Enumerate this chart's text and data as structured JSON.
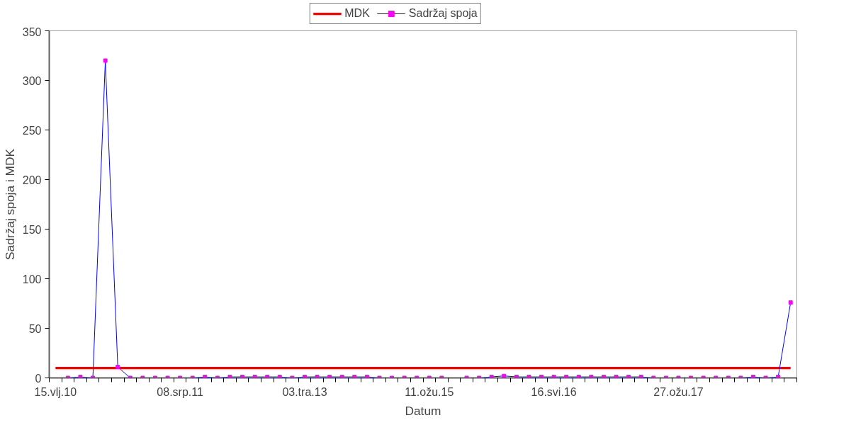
{
  "chart_data": {
    "type": "line",
    "xlabel": "Datum",
    "ylabel": "Sadržaj spoja i MDK",
    "categories": [
      "15.vlj.10",
      null,
      null,
      null,
      null,
      null,
      null,
      null,
      null,
      null,
      "08.srp.11",
      null,
      null,
      null,
      null,
      null,
      null,
      null,
      null,
      null,
      "03.tra.13",
      null,
      null,
      null,
      null,
      null,
      null,
      null,
      null,
      null,
      "11.ožu.15",
      null,
      null,
      null,
      null,
      null,
      null,
      null,
      null,
      null,
      "16.svi.16",
      null,
      null,
      null,
      null,
      null,
      null,
      null,
      null,
      null,
      "27.ožu.17",
      null,
      null,
      null,
      null,
      null,
      null,
      null,
      null,
      null
    ],
    "series": [
      {
        "name": "MDK",
        "color": "#ff0000",
        "marker": "none",
        "values": [
          10,
          10,
          10,
          10,
          10,
          10,
          10,
          10,
          10,
          10,
          10,
          10,
          10,
          10,
          10,
          10,
          10,
          10,
          10,
          10,
          10,
          10,
          10,
          10,
          10,
          10,
          10,
          10,
          10,
          10,
          10,
          10,
          10,
          10,
          10,
          10,
          10,
          10,
          10,
          10,
          10,
          10,
          10,
          10,
          10,
          10,
          10,
          10,
          10,
          10,
          10,
          10,
          10,
          10,
          10,
          10,
          10,
          10,
          10,
          10
        ]
      },
      {
        "name": "Sadržaj spoja",
        "color": "#0000ff",
        "marker": "square",
        "colors": [
          "#ff00ff",
          "#ff00ff",
          "#ff00ff",
          "#ff00ff",
          "#ff00ff",
          "#ff00ff",
          "#ff00ff",
          "#ff00ff",
          "#ff00ff",
          "#ff00ff",
          "#ff00ff",
          "#ff00ff",
          "#ff00ff",
          "#ff00ff",
          "#ff00ff",
          "#ff00ff",
          "#ff00ff",
          "#ff00ff",
          "#ff00ff",
          "#ff00ff",
          "#ff00ff",
          "#ff00ff",
          "#ff00ff",
          "#ff00ff",
          "#ff00ff",
          "#ff00ff",
          "#ff00ff",
          "#ff00ff",
          "#ff00ff",
          "#ff00ff",
          "#ff00ff",
          "#ff00ff",
          "#ff00ff",
          "#ff00ff",
          "#ff00ff",
          "#ff00ff",
          "#ff00ff",
          "#ff00ff",
          "#ff00ff",
          "#ff00ff",
          "#ff00ff",
          "#ff00ff",
          "#ff00ff",
          "#ff00ff",
          "#ff00ff",
          "#ff00ff",
          "#ff00ff",
          "#ff00ff",
          "#ff00ff",
          "#ff00ff",
          "#ff00ff",
          "#ff00ff",
          "#ff00ff",
          "#ff00ff",
          "#ff00ff",
          "#ff00ff",
          "#ff00ff",
          "#ff00ff",
          "#ff00ff",
          "#ff00ff"
        ],
        "values": [
          null,
          0,
          1,
          0,
          320,
          11,
          0,
          0,
          0,
          0,
          0,
          0,
          1,
          0,
          1,
          1,
          1,
          1,
          1,
          0,
          1,
          1,
          1,
          1,
          1,
          1,
          0,
          0,
          0,
          0,
          0,
          0,
          null,
          0,
          0,
          1,
          2,
          1,
          1,
          1,
          1,
          1,
          1,
          1,
          1,
          1,
          1,
          1,
          0,
          0,
          0,
          0,
          0,
          0,
          0,
          0,
          1,
          0,
          1,
          76
        ]
      }
    ],
    "ylim": [
      0,
      350
    ],
    "yticks": [
      0,
      50,
      100,
      150,
      200,
      250,
      300,
      350
    ],
    "grid": false,
    "legend": "top"
  }
}
